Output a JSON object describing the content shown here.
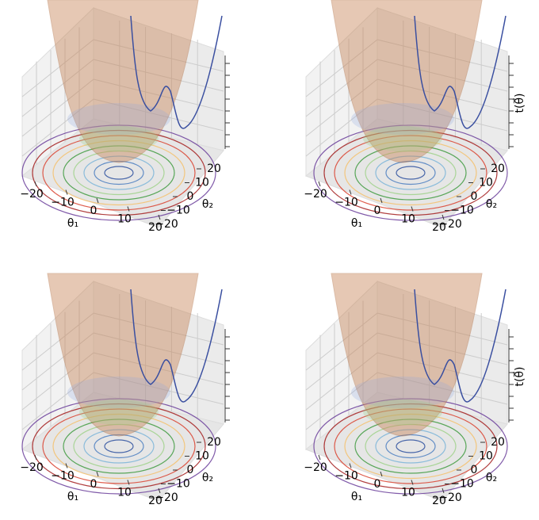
{
  "chart_data": [
    {
      "type": "surface3d",
      "xlabel": "θ₁",
      "ylabel": "θ₂",
      "xticks": [
        {
          "value": -20,
          "label": "−20"
        },
        {
          "value": -10,
          "label": "−10"
        },
        0,
        10,
        20
      ],
      "yticks": [
        {
          "value": -20,
          "label": "−20"
        },
        {
          "value": -10,
          "label": "−10"
        },
        0,
        10,
        20
      ],
      "xlim": [
        -25,
        25
      ],
      "ylim": [
        -25,
        25
      ]
    },
    {
      "type": "surface3d",
      "xlabel": "θ₁",
      "ylabel": "θ₂",
      "zlabel": "t(θ⃗)",
      "xticks": [
        {
          "value": -20,
          "label": "−20"
        },
        {
          "value": -10,
          "label": "−10"
        },
        0,
        10,
        20
      ],
      "yticks": [
        {
          "value": -20,
          "label": "−20"
        },
        {
          "value": -10,
          "label": "−10"
        },
        0,
        10,
        20
      ],
      "xlim": [
        -25,
        25
      ],
      "ylim": [
        -25,
        25
      ]
    },
    {
      "type": "surface3d",
      "xlabel": "θ₁",
      "ylabel": "θ₂",
      "xticks": [
        {
          "value": -20,
          "label": "−20"
        },
        {
          "value": -10,
          "label": "−10"
        },
        0,
        10,
        20
      ],
      "yticks": [
        {
          "value": -20,
          "label": "−20"
        },
        {
          "value": -10,
          "label": "−10"
        },
        0,
        10,
        20
      ],
      "xlim": [
        -25,
        25
      ],
      "ylim": [
        -25,
        25
      ]
    },
    {
      "type": "surface3d",
      "xlabel": "θ₁",
      "ylabel": "θ₂",
      "zlabel": "t(θ⃗)",
      "xticks": [
        {
          "value": -20,
          "label": "−20"
        },
        {
          "value": -10,
          "label": "−10"
        },
        0,
        10,
        20
      ],
      "yticks": [
        {
          "value": -20,
          "label": "−20"
        },
        {
          "value": -10,
          "label": "−10"
        },
        0,
        10,
        20
      ],
      "xlim": [
        -25,
        25
      ],
      "ylim": [
        -25,
        25
      ]
    }
  ]
}
